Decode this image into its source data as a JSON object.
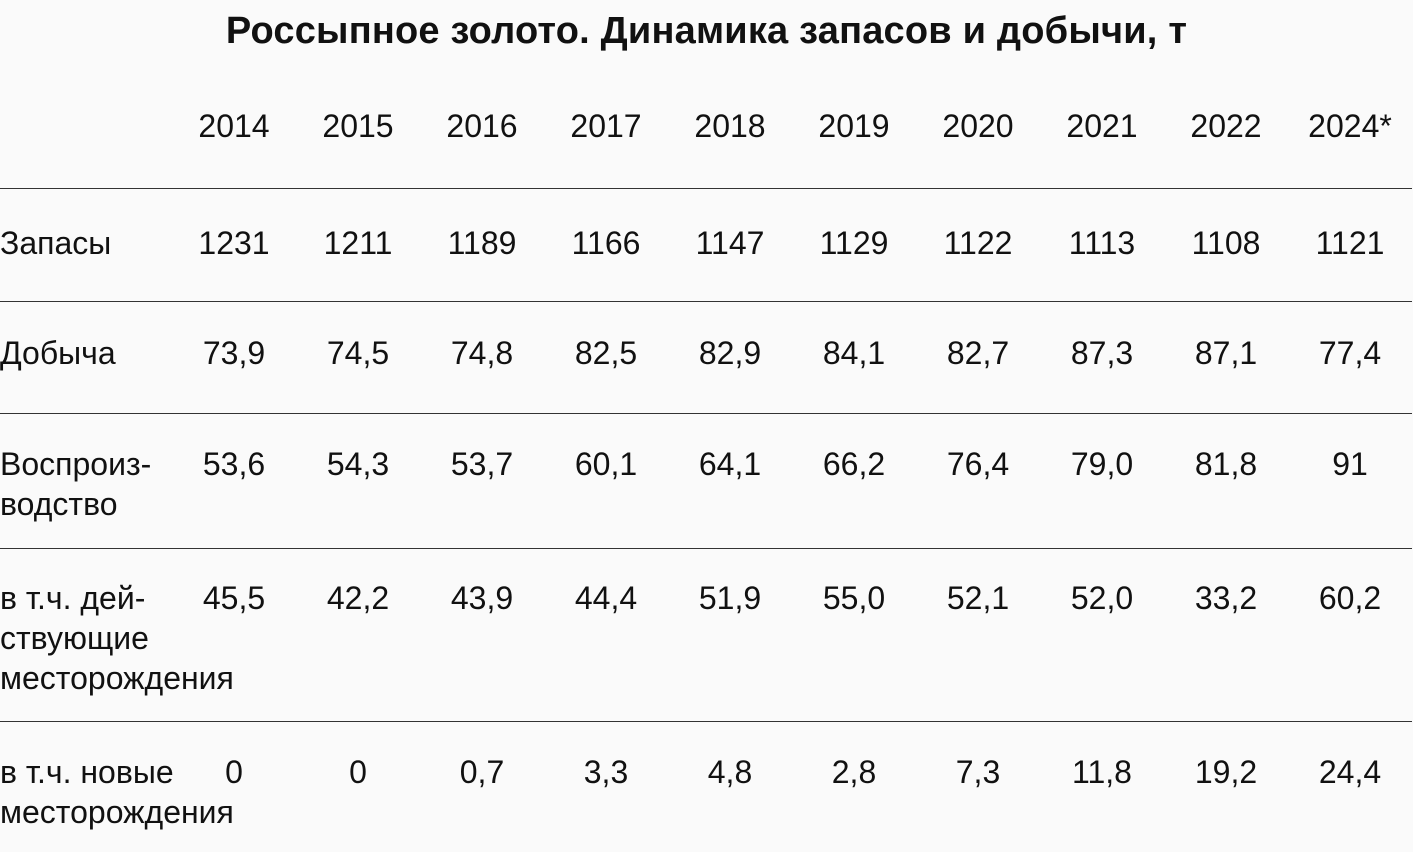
{
  "title": "Россыпное золото. Динамика запасов и добычи, т",
  "table": {
    "years": [
      "2014",
      "2015",
      "2016",
      "2017",
      "2018",
      "2019",
      "2020",
      "2021",
      "2022",
      "2024*"
    ],
    "rows": [
      {
        "label_lines": [
          "Запасы"
        ],
        "values": [
          "1231",
          "1211",
          "1189",
          "1166",
          "1147",
          "1129",
          "1122",
          "1113",
          "1108",
          "1121"
        ]
      },
      {
        "label_lines": [
          "Добыча"
        ],
        "values": [
          "73,9",
          "74,5",
          "74,8",
          "82,5",
          "82,9",
          "84,1",
          "82,7",
          "87,3",
          "87,1",
          "77,4"
        ]
      },
      {
        "label_lines": [
          "Воспроиз-",
          "водство"
        ],
        "values": [
          "53,6",
          "54,3",
          "53,7",
          "60,1",
          "64,1",
          "66,2",
          "76,4",
          "79,0",
          "81,8",
          "91"
        ]
      },
      {
        "label_lines": [
          "в т.ч. дей-",
          "ствующие",
          "месторождения"
        ],
        "values": [
          "45,5",
          "42,2",
          "43,9",
          "44,4",
          "51,9",
          "55,0",
          "52,1",
          "52,0",
          "33,2",
          "60,2"
        ]
      },
      {
        "label_lines": [
          "в т.ч. новые",
          "месторождения"
        ],
        "values": [
          "0",
          "0",
          "0,7",
          "3,3",
          "4,8",
          "2,8",
          "7,3",
          "11,8",
          "19,2",
          "24,4"
        ]
      }
    ]
  }
}
